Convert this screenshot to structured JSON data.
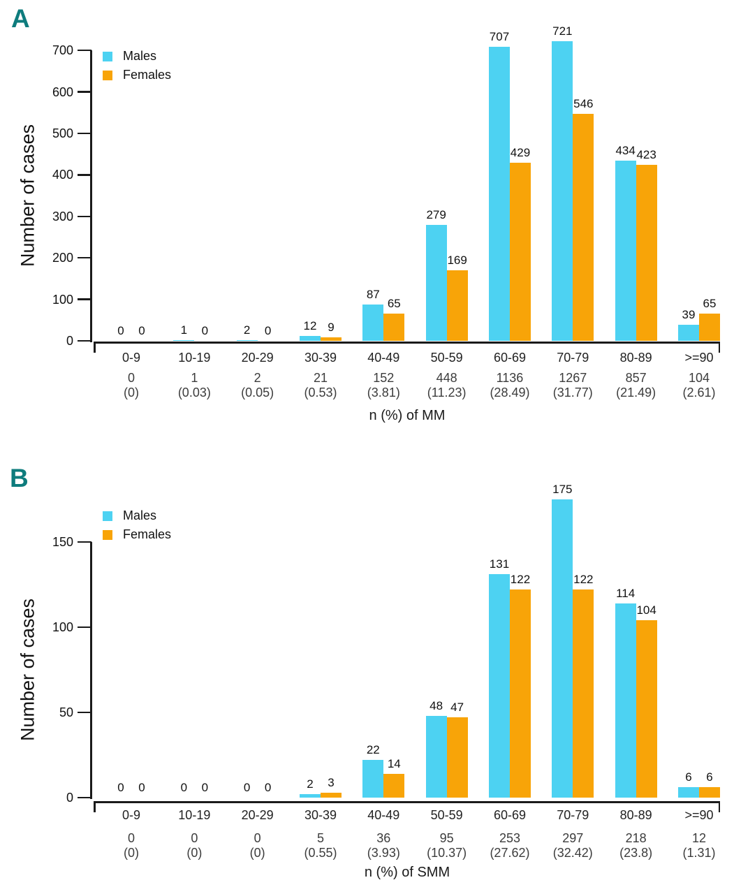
{
  "figure": {
    "background": "#ffffff",
    "colors": {
      "males": "#4dd2f2",
      "females": "#f8a408",
      "panel_letter": "#0e7c7d",
      "axis": "#1a1a1a",
      "subtext": "#3c3c3c"
    }
  },
  "chart_data": [
    {
      "type": "bar",
      "panel_label": "A",
      "ylabel": "Number of cases",
      "xlabel": "n (%) of MM",
      "legend": [
        "Males",
        "Females"
      ],
      "legend_position": "top-left-inside",
      "grid": false,
      "ylim": [
        0,
        700
      ],
      "yticks": [
        0,
        100,
        200,
        300,
        400,
        500,
        600,
        700
      ],
      "categories": [
        "0-9",
        "10-19",
        "20-29",
        "30-39",
        "40-49",
        "50-59",
        "60-69",
        "70-79",
        "80-89",
        ">=90"
      ],
      "series": [
        {
          "name": "Males",
          "color": "#4dd2f2",
          "values": [
            0,
            1,
            2,
            12,
            87,
            279,
            707,
            721,
            434,
            39
          ]
        },
        {
          "name": "Females",
          "color": "#f8a408",
          "values": [
            0,
            0,
            0,
            9,
            65,
            169,
            429,
            546,
            423,
            65
          ]
        }
      ],
      "totals_row": [
        {
          "n": "0",
          "pct": "(0)"
        },
        {
          "n": "1",
          "pct": "(0.03)"
        },
        {
          "n": "2",
          "pct": "(0.05)"
        },
        {
          "n": "21",
          "pct": "(0.53)"
        },
        {
          "n": "152",
          "pct": "(3.81)"
        },
        {
          "n": "448",
          "pct": "(11.23)"
        },
        {
          "n": "1136",
          "pct": "(28.49)"
        },
        {
          "n": "1267",
          "pct": "(31.77)"
        },
        {
          "n": "857",
          "pct": "(21.49)"
        },
        {
          "n": "104",
          "pct": "(2.61)"
        }
      ]
    },
    {
      "type": "bar",
      "panel_label": "B",
      "ylabel": "Number of cases",
      "xlabel": "n (%) of SMM",
      "legend": [
        "Males",
        "Females"
      ],
      "legend_position": "top-left-inside",
      "grid": false,
      "ylim": [
        0,
        150
      ],
      "yticks": [
        0,
        50,
        100,
        150
      ],
      "categories": [
        "0-9",
        "10-19",
        "20-29",
        "30-39",
        "40-49",
        "50-59",
        "60-69",
        "70-79",
        "80-89",
        ">=90"
      ],
      "series": [
        {
          "name": "Males",
          "color": "#4dd2f2",
          "values": [
            0,
            0,
            0,
            2,
            22,
            48,
            131,
            175,
            114,
            6
          ]
        },
        {
          "name": "Females",
          "color": "#f8a408",
          "values": [
            0,
            0,
            0,
            3,
            14,
            47,
            122,
            122,
            104,
            6
          ]
        }
      ],
      "totals_row": [
        {
          "n": "0",
          "pct": "(0)"
        },
        {
          "n": "0",
          "pct": "(0)"
        },
        {
          "n": "0",
          "pct": "(0)"
        },
        {
          "n": "5",
          "pct": "(0.55)"
        },
        {
          "n": "36",
          "pct": "(3.93)"
        },
        {
          "n": "95",
          "pct": "(10.37)"
        },
        {
          "n": "253",
          "pct": "(27.62)"
        },
        {
          "n": "297",
          "pct": "(32.42)"
        },
        {
          "n": "218",
          "pct": "(23.8)"
        },
        {
          "n": "12",
          "pct": "(1.31)"
        }
      ]
    }
  ]
}
